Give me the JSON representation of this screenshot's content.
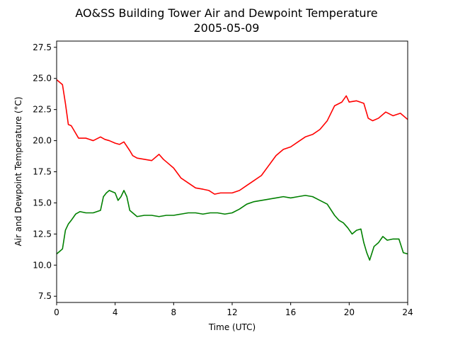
{
  "chart_data": {
    "type": "line",
    "title": "AO&SS Building Tower Air and Dewpoint Temperature",
    "subtitle": "2005-05-09",
    "xlabel": "Time (UTC)",
    "ylabel": "Air and Dewpoint Temperature (°C)",
    "xlim": [
      0,
      24
    ],
    "ylim": [
      7.0,
      28.0
    ],
    "xticks": [
      0,
      4,
      8,
      12,
      16,
      20,
      24
    ],
    "xtick_labels": [
      "0",
      "4",
      "8",
      "12",
      "16",
      "20",
      "24"
    ],
    "yticks": [
      7.5,
      10.0,
      12.5,
      15.0,
      17.5,
      20.0,
      22.5,
      25.0,
      27.5
    ],
    "ytick_labels": [
      "7.5",
      "10.0",
      "12.5",
      "15.0",
      "17.5",
      "20.0",
      "22.5",
      "25.0",
      "27.5"
    ],
    "grid": false,
    "legend": "none",
    "series": [
      {
        "color": "#ff0000",
        "x": [
          0,
          0.2,
          0.4,
          0.6,
          0.8,
          1.0,
          1.2,
          1.5,
          2.0,
          2.5,
          3.0,
          3.3,
          3.6,
          4.0,
          4.3,
          4.6,
          5.0,
          5.2,
          5.5,
          6.0,
          6.5,
          7.0,
          7.3,
          7.6,
          8.0,
          8.5,
          9.0,
          9.5,
          10.0,
          10.4,
          10.8,
          11.2,
          11.6,
          12.0,
          12.5,
          13.0,
          13.5,
          14.0,
          14.5,
          15.0,
          15.5,
          16.0,
          16.5,
          17.0,
          17.5,
          18.0,
          18.5,
          19.0,
          19.5,
          19.8,
          20.0,
          20.5,
          21.0,
          21.3,
          21.6,
          22.0,
          22.5,
          23.0,
          23.5,
          24.0
        ],
        "y": [
          24.9,
          24.7,
          24.5,
          23.0,
          21.3,
          21.2,
          20.8,
          20.2,
          20.2,
          20.0,
          20.3,
          20.1,
          20.0,
          19.8,
          19.7,
          19.9,
          19.2,
          18.8,
          18.6,
          18.5,
          18.4,
          18.9,
          18.5,
          18.2,
          17.8,
          17.0,
          16.6,
          16.2,
          16.1,
          16.0,
          15.7,
          15.8,
          15.8,
          15.8,
          16.0,
          16.4,
          16.8,
          17.2,
          18.0,
          18.8,
          19.3,
          19.5,
          19.9,
          20.3,
          20.5,
          20.9,
          21.6,
          22.8,
          23.1,
          23.6,
          23.1,
          23.2,
          23.0,
          21.8,
          21.6,
          21.8,
          22.3,
          22.0,
          22.2,
          21.7
        ]
      },
      {
        "color": "#008000",
        "x": [
          0,
          0.2,
          0.4,
          0.6,
          0.8,
          1.0,
          1.3,
          1.6,
          2.0,
          2.5,
          3.0,
          3.2,
          3.4,
          3.6,
          3.8,
          4.0,
          4.2,
          4.4,
          4.6,
          4.8,
          5.0,
          5.5,
          6.0,
          6.5,
          7.0,
          7.5,
          8.0,
          8.5,
          9.0,
          9.5,
          10.0,
          10.5,
          11.0,
          11.5,
          12.0,
          12.5,
          13.0,
          13.5,
          14.0,
          14.5,
          15.0,
          15.5,
          16.0,
          16.5,
          17.0,
          17.5,
          18.0,
          18.5,
          19.0,
          19.3,
          19.6,
          19.9,
          20.2,
          20.5,
          20.8,
          21.0,
          21.2,
          21.4,
          21.7,
          22.0,
          22.3,
          22.6,
          23.0,
          23.4,
          23.7,
          24.0
        ],
        "y": [
          10.9,
          11.1,
          11.3,
          12.8,
          13.3,
          13.6,
          14.1,
          14.3,
          14.2,
          14.2,
          14.4,
          15.5,
          15.8,
          16.0,
          15.9,
          15.8,
          15.2,
          15.5,
          16.0,
          15.5,
          14.4,
          13.9,
          14.0,
          14.0,
          13.9,
          14.0,
          14.0,
          14.1,
          14.2,
          14.2,
          14.1,
          14.2,
          14.2,
          14.1,
          14.2,
          14.5,
          14.9,
          15.1,
          15.2,
          15.3,
          15.4,
          15.5,
          15.4,
          15.5,
          15.6,
          15.5,
          15.2,
          14.9,
          14.0,
          13.6,
          13.4,
          13.0,
          12.5,
          12.8,
          12.9,
          11.8,
          11.0,
          10.4,
          11.5,
          11.8,
          12.3,
          12.0,
          12.1,
          12.1,
          11.0,
          10.9
        ]
      }
    ]
  }
}
